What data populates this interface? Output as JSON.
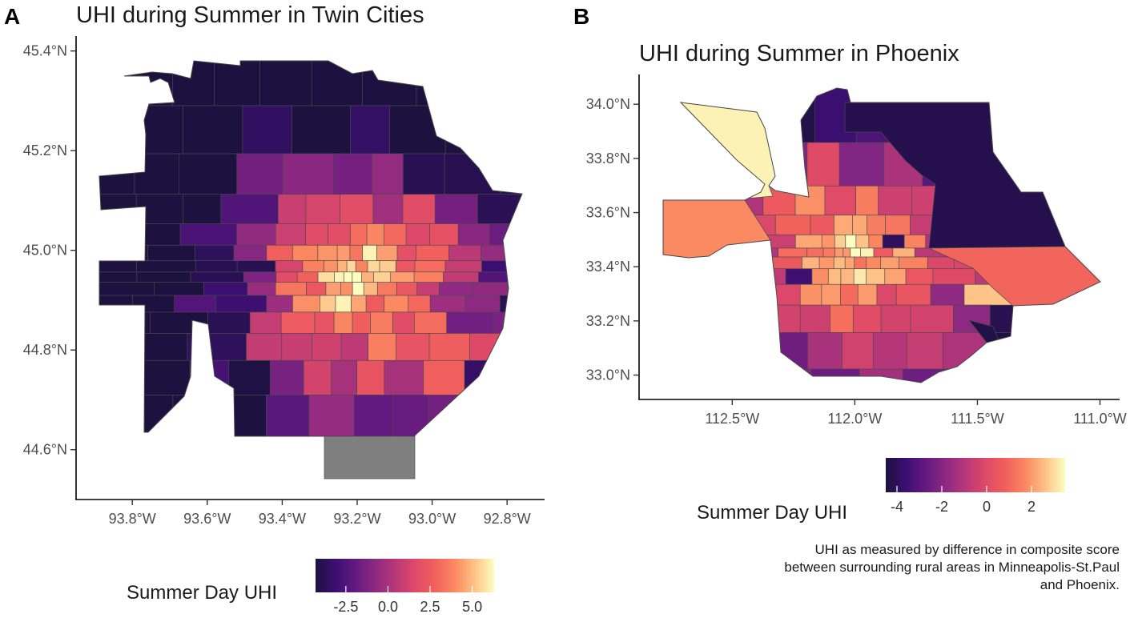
{
  "panels": {
    "a": {
      "letter": "A",
      "title": "UHI during Summer in Twin Cities",
      "legend_title": "Summer Day UHI",
      "legend_ticks": [
        "-2.5",
        "0.0",
        "2.5",
        "5.0"
      ]
    },
    "b": {
      "letter": "B",
      "title": "UHI during Summer in Phoenix",
      "legend_title": "Summer Day UHI",
      "legend_ticks": [
        "-4",
        "-2",
        "0",
        "2"
      ]
    }
  },
  "caption_lines": [
    "UHI as measured by difference in composite score",
    "between surrounding rural areas in Minneapolis-St.Paul",
    "and Phoenix."
  ],
  "colors": {
    "missing": "#7f7f7f",
    "palette": [
      "#1d1140",
      "#3b0f70",
      "#641a80",
      "#8c2981",
      "#b73779",
      "#de4968",
      "#f1605d",
      "#fb8861",
      "#fec287",
      "#fcfdbf"
    ]
  },
  "chart_data": [
    {
      "type": "heatmap",
      "map": "choropleth",
      "title": "UHI during Summer in Twin Cities",
      "x_tick_labels": [
        "93.8°W",
        "93.6°W",
        "93.4°W",
        "93.2°W",
        "93.0°W",
        "92.8°W"
      ],
      "x_tick_values": [
        -93.8,
        -93.6,
        -93.4,
        -93.2,
        -93.0,
        -92.8
      ],
      "y_tick_labels": [
        "45.4°N",
        "45.2°N",
        "45.0°N",
        "44.8°N",
        "44.6°N"
      ],
      "y_tick_values": [
        45.4,
        45.2,
        45.0,
        44.8,
        44.6
      ],
      "xlim": [
        -93.95,
        -92.7
      ],
      "ylim": [
        44.5,
        45.43
      ],
      "legend": {
        "title": "Summer Day UHI",
        "range": [
          -4.3,
          6.3
        ],
        "tick_values": [
          -2.5,
          0.0,
          2.5,
          5.0
        ],
        "palette": "magma"
      }
    },
    {
      "type": "heatmap",
      "map": "choropleth",
      "title": "UHI during Summer in Phoenix",
      "x_tick_labels": [
        "112.5°W",
        "112.0°W",
        "111.5°W",
        "111.0°W"
      ],
      "x_tick_values": [
        -112.5,
        -112.0,
        -111.5,
        -111.0
      ],
      "y_tick_labels": [
        "34.0°N",
        "33.8°N",
        "33.6°N",
        "33.4°N",
        "33.2°N",
        "33.0°N"
      ],
      "y_tick_values": [
        34.0,
        33.8,
        33.6,
        33.4,
        33.2,
        33.0
      ],
      "xlim": [
        -112.88,
        -110.92
      ],
      "ylim": [
        32.91,
        34.11
      ],
      "legend": {
        "title": "Summer Day UHI",
        "range": [
          -4.5,
          3.5
        ],
        "tick_values": [
          -4,
          -2,
          0,
          2
        ],
        "palette": "magma"
      }
    }
  ]
}
